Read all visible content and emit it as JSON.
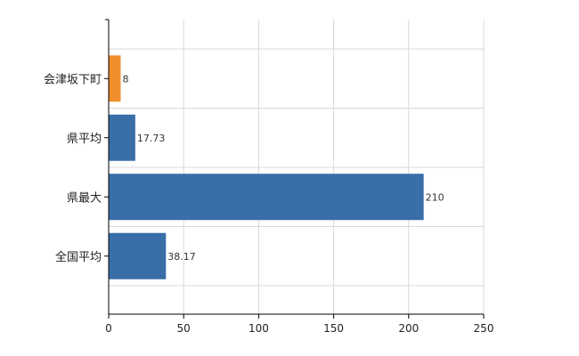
{
  "chart_data": {
    "type": "bar",
    "orientation": "horizontal",
    "categories": [
      "会津坂下町",
      "県平均",
      "県最大",
      "全国平均"
    ],
    "values": [
      8,
      17.73,
      210,
      38.17
    ],
    "value_labels": [
      "8",
      "17.73",
      "210",
      "38.17"
    ],
    "colors": [
      "#F28E2B",
      "#3A6EA9",
      "#3A6EA9",
      "#3A6EA9"
    ],
    "xlim": [
      0,
      250
    ],
    "xticks": [
      0,
      50,
      100,
      150,
      200,
      250
    ],
    "xtick_labels": [
      "0",
      "50",
      "100",
      "150",
      "200",
      "250"
    ],
    "grid": true
  }
}
